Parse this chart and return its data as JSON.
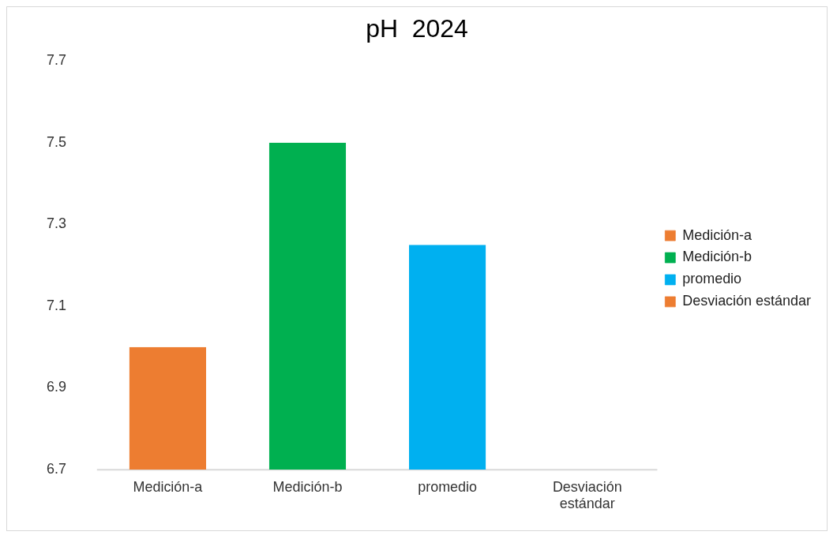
{
  "chart_data": {
    "type": "bar",
    "title": "pH  2024",
    "categories": [
      "Medición-a",
      "Medición-b",
      "promedio",
      "Desviación estándar"
    ],
    "series": [
      {
        "name": "Medición-a",
        "color": "#ed7d31",
        "values": [
          7.0,
          null,
          null,
          null
        ]
      },
      {
        "name": "Medición-b",
        "color": "#00b050",
        "values": [
          null,
          7.5,
          null,
          null
        ]
      },
      {
        "name": "promedio",
        "color": "#00b0f0",
        "values": [
          null,
          null,
          7.25,
          null
        ]
      },
      {
        "name": "Desviación estándar",
        "color": "#ed7d31",
        "values": [
          null,
          null,
          null,
          null
        ]
      }
    ],
    "ylim": [
      6.7,
      7.7
    ],
    "yticks": [
      6.7,
      6.9,
      7.1,
      7.3,
      7.5,
      7.7
    ],
    "grid": false,
    "legend": "right"
  }
}
